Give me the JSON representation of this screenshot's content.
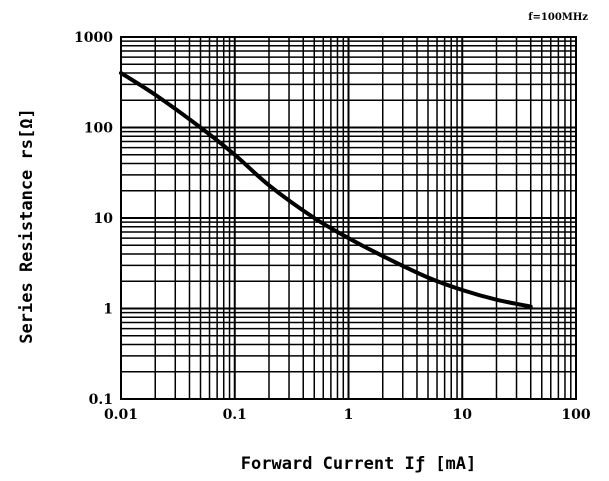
{
  "chart_data": {
    "type": "line",
    "xscale": "log",
    "yscale": "log",
    "xlim": [
      0.01,
      100
    ],
    "ylim": [
      0.1,
      1000
    ],
    "grid": true,
    "xlabel": "Forward Current Iƒ [mA]",
    "ylabel": "Series Resistance rs[Ω]",
    "annotation": "f=100MHz",
    "x_tick_labels": [
      "0.01",
      "0.1",
      "1",
      "10",
      "100"
    ],
    "y_tick_labels": [
      "0.1",
      "1",
      "10",
      "100",
      "1000"
    ],
    "series": [
      {
        "x": [
          0.01,
          0.02,
          0.05,
          0.1,
          0.2,
          0.5,
          1,
          2,
          5,
          10,
          20,
          40
        ],
        "y": [
          400,
          230,
          100,
          50,
          23,
          10,
          6,
          3.8,
          2.2,
          1.6,
          1.25,
          1.05
        ]
      }
    ]
  }
}
